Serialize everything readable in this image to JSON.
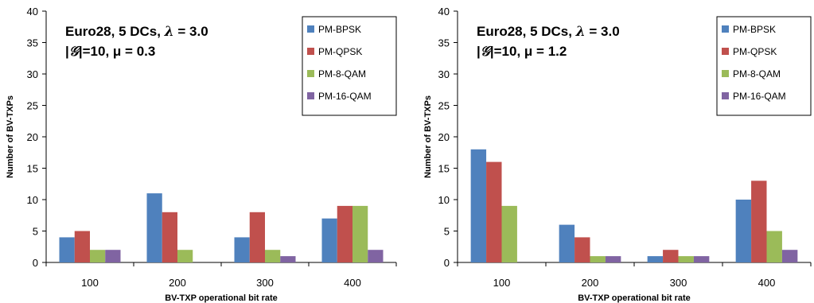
{
  "colors": {
    "PM-BPSK": "#4F81BD",
    "PM-QPSK": "#C0504D",
    "PM-8-QAM": "#9BBB59",
    "PM-16-QAM": "#8064A2"
  },
  "chart_data": [
    {
      "type": "bar",
      "categories": [
        "100",
        "200",
        "300",
        "400"
      ],
      "series": [
        {
          "name": "PM-BPSK",
          "values": [
            4,
            11,
            4,
            7
          ]
        },
        {
          "name": "PM-QPSK",
          "values": [
            5,
            8,
            8,
            9
          ]
        },
        {
          "name": "PM-8-QAM",
          "values": [
            2,
            2,
            2,
            9
          ]
        },
        {
          "name": "PM-16-QAM",
          "values": [
            2,
            0,
            1,
            2
          ]
        }
      ],
      "yticks": [
        "0",
        "5",
        "10",
        "15",
        "20",
        "25",
        "30",
        "35",
        "40"
      ],
      "ylim": [
        0,
        40
      ],
      "xlabel": "BV-TXP operational bit rate",
      "ylabel": "Number of BV-TXPs",
      "annotation": {
        "line1_prefix": "Euro28, 5 DCs, ",
        "line1_sym": "λ",
        "line1_suffix": " = 3.0",
        "line2_open": "|",
        "line2_sym": "𝒢",
        "line2_rest": "|=10, μ = 0.3"
      },
      "legend_position": "top-right",
      "grid": false
    },
    {
      "type": "bar",
      "categories": [
        "100",
        "200",
        "300",
        "400"
      ],
      "series": [
        {
          "name": "PM-BPSK",
          "values": [
            18,
            6,
            1,
            10
          ]
        },
        {
          "name": "PM-QPSK",
          "values": [
            16,
            4,
            2,
            13
          ]
        },
        {
          "name": "PM-8-QAM",
          "values": [
            9,
            1,
            1,
            5
          ]
        },
        {
          "name": "PM-16-QAM",
          "values": [
            0,
            1,
            1,
            2
          ]
        }
      ],
      "yticks": [
        "0",
        "5",
        "10",
        "15",
        "20",
        "25",
        "30",
        "35",
        "40"
      ],
      "ylim": [
        0,
        40
      ],
      "xlabel": "BV-TXP operational bit rate",
      "ylabel": "Number of BV-TXPs",
      "annotation": {
        "line1_prefix": "Euro28, 5 DCs, ",
        "line1_sym": "λ",
        "line1_suffix": " = 3.0",
        "line2_open": "|",
        "line2_sym": "𝒢",
        "line2_rest": "|=10,  μ = 1.2"
      },
      "legend_position": "top-right",
      "grid": false
    }
  ]
}
